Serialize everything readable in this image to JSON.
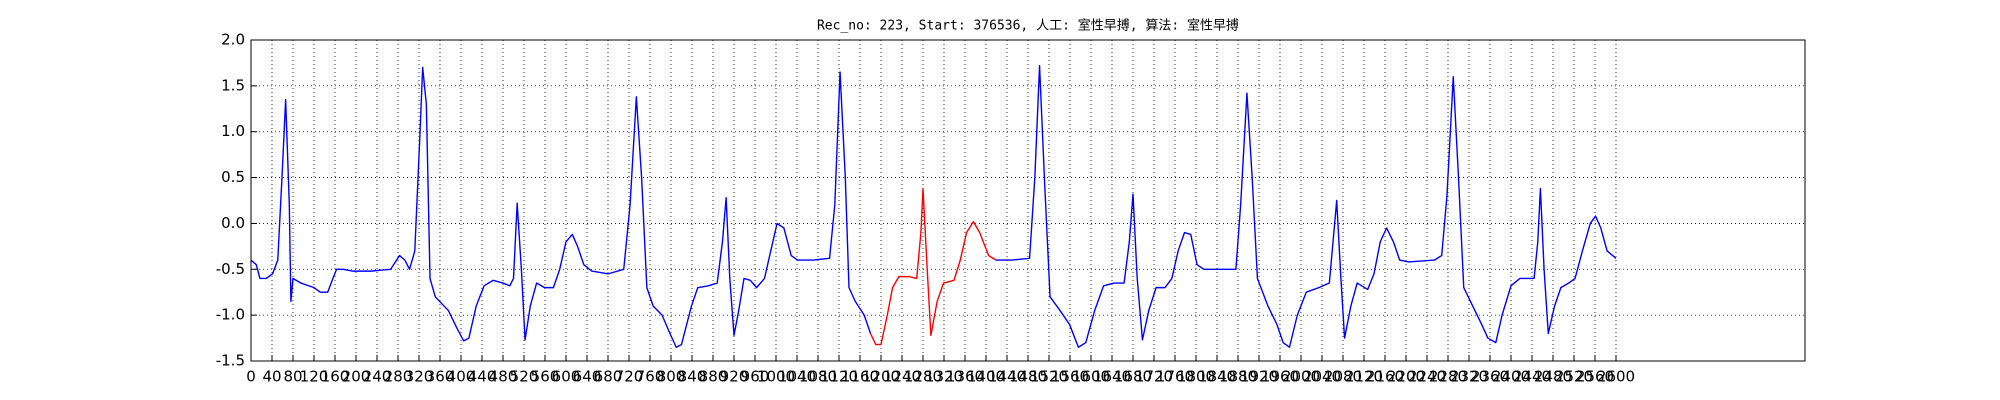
{
  "chart_data": {
    "type": "line",
    "title": "Rec_no: 223, Start: 376536, 人工: 室性早搏, 算法: 室性早搏",
    "xlim": [
      0,
      2960
    ],
    "xticks": [
      0,
      40,
      80,
      120,
      160,
      200,
      240,
      280,
      320,
      360,
      400,
      440,
      480,
      520,
      560,
      600,
      640,
      680,
      720,
      760,
      800,
      840,
      880,
      920,
      960,
      1000,
      1040,
      1080,
      1120,
      1160,
      1200,
      1240,
      1280,
      1320,
      1360,
      1400,
      1440,
      1480,
      1520,
      1560,
      1600,
      1640,
      1680,
      1720,
      1760,
      1800,
      1840,
      1880,
      1920,
      1960,
      2000,
      2040,
      2080,
      2120,
      2160,
      2200,
      2240,
      2280,
      2320,
      2360,
      2400,
      2440,
      2480,
      2520,
      2560,
      2600
    ],
    "ylim": [
      -1.5,
      2.0
    ],
    "yticks": [
      -1.5,
      {
        "value": -1.0,
        "label": "-1.0"
      },
      -0.5,
      {
        "value": 0.0,
        "label": "0.0"
      },
      0.5,
      {
        "value": 1.0,
        "label": "1.0"
      },
      1.5,
      {
        "value": 2.0,
        "label": "2.0"
      }
    ],
    "grid": true,
    "series": [
      {
        "color": "#0000ff",
        "x": [
          0,
          10,
          17,
          29,
          41,
          51,
          59,
          66,
          73,
          76,
          80,
          95,
          120,
          132,
          146,
          156,
          163,
          176,
          193,
          229,
          266,
          283,
          293,
          302,
          312,
          322,
          327,
          334,
          341,
          351,
          376,
          393,
          405,
          415,
          429,
          444,
          461,
          480,
          493,
          500,
          507,
          515,
          522,
          532,
          544,
          559,
          576,
          588,
          600,
          612,
          622,
          634,
          649,
          680,
          710,
          722,
          734,
          744,
          754,
          766,
          783,
          798,
          810,
          820,
          839,
          851,
          871,
          888,
          898,
          905,
          912,
          920,
          929,
          939,
          951,
          963,
          978,
          990,
          1002,
          1015,
          1029,
          1041,
          1071,
          1102,
          1112,
          1122,
          1132,
          1139,
          1151,
          1168,
          1180
        ],
        "values": [
          -0.4,
          -0.45,
          -0.6,
          -0.6,
          -0.55,
          -0.4,
          0.5,
          1.35,
          0.2,
          -0.85,
          -0.6,
          -0.65,
          -0.7,
          -0.75,
          -0.75,
          -0.6,
          -0.5,
          -0.5,
          -0.52,
          -0.52,
          -0.5,
          -0.35,
          -0.4,
          -0.5,
          -0.3,
          1.0,
          1.7,
          1.3,
          -0.6,
          -0.8,
          -0.95,
          -1.15,
          -1.28,
          -1.25,
          -0.9,
          -0.68,
          -0.62,
          -0.65,
          -0.68,
          -0.6,
          0.22,
          -0.5,
          -1.27,
          -0.9,
          -0.65,
          -0.7,
          -0.7,
          -0.5,
          -0.2,
          -0.12,
          -0.25,
          -0.45,
          -0.52,
          -0.55,
          -0.5,
          0.2,
          1.38,
          0.5,
          -0.7,
          -0.9,
          -1.0,
          -1.2,
          -1.35,
          -1.32,
          -0.9,
          -0.7,
          -0.68,
          -0.65,
          -0.2,
          0.28,
          -0.6,
          -1.22,
          -0.95,
          -0.6,
          -0.62,
          -0.7,
          -0.6,
          -0.3,
          0.0,
          -0.05,
          -0.35,
          -0.4,
          -0.4,
          -0.38,
          0.2,
          1.65,
          0.5,
          -0.7,
          -0.85,
          -1.0,
          -1.2
        ]
      },
      {
        "color": "#ff0000",
        "x": [
          1180,
          1190,
          1200,
          1212,
          1222,
          1234,
          1254,
          1268,
          1276,
          1280,
          1288,
          1295,
          1307,
          1319,
          1339,
          1351,
          1363,
          1376,
          1388,
          1405,
          1419
        ],
        "values": [
          -1.2,
          -1.32,
          -1.32,
          -1.0,
          -0.7,
          -0.58,
          -0.58,
          -0.6,
          -0.1,
          0.38,
          -0.5,
          -1.22,
          -0.85,
          -0.65,
          -0.62,
          -0.4,
          -0.1,
          0.02,
          -0.1,
          -0.35,
          -0.4
        ]
      },
      {
        "color": "#0000ff",
        "x": [
          1419,
          1449,
          1483,
          1493,
          1502,
          1512,
          1522,
          1541,
          1559,
          1576,
          1590,
          1607,
          1624,
          1644,
          1663,
          1673,
          1680,
          1688,
          1698,
          1710,
          1724,
          1741,
          1754,
          1766,
          1778,
          1790,
          1802,
          1815,
          1876,
          1885,
          1897,
          1907,
          1917,
          1937,
          1954,
          1966,
          1978,
          1993,
          2010,
          2034,
          2054,
          2061,
          2068,
          2076,
          2083,
          2095,
          2107,
          2127,
          2139,
          2151,
          2163,
          2176,
          2188,
          2205,
          2254,
          2268,
          2278,
          2290,
          2300,
          2310,
          2327,
          2344,
          2356,
          2371,
          2383,
          2400,
          2417,
          2444,
          2451,
          2456,
          2463,
          2471,
          2483,
          2495,
          2510,
          2522,
          2536,
          2551,
          2561,
          2571,
          2583,
          2600
        ],
        "values": [
          -0.4,
          -0.4,
          -0.38,
          0.5,
          1.72,
          0.4,
          -0.8,
          -0.95,
          -1.1,
          -1.35,
          -1.3,
          -0.95,
          -0.68,
          -0.65,
          -0.65,
          -0.2,
          0.32,
          -0.6,
          -1.27,
          -0.95,
          -0.7,
          -0.7,
          -0.6,
          -0.3,
          -0.1,
          -0.12,
          -0.45,
          -0.5,
          -0.5,
          0.2,
          1.42,
          0.5,
          -0.6,
          -0.9,
          -1.1,
          -1.3,
          -1.35,
          -1.0,
          -0.75,
          -0.7,
          -0.65,
          -0.2,
          0.25,
          -0.6,
          -1.25,
          -0.9,
          -0.65,
          -0.72,
          -0.55,
          -0.2,
          -0.05,
          -0.2,
          -0.4,
          -0.42,
          -0.4,
          -0.35,
          0.3,
          1.6,
          0.5,
          -0.7,
          -0.9,
          -1.1,
          -1.25,
          -1.3,
          -1.0,
          -0.68,
          -0.6,
          -0.6,
          -0.2,
          0.38,
          -0.5,
          -1.2,
          -0.9,
          -0.7,
          -0.65,
          -0.6,
          -0.3,
          0.0,
          0.08,
          -0.05,
          -0.3,
          -0.38
        ]
      }
    ]
  }
}
